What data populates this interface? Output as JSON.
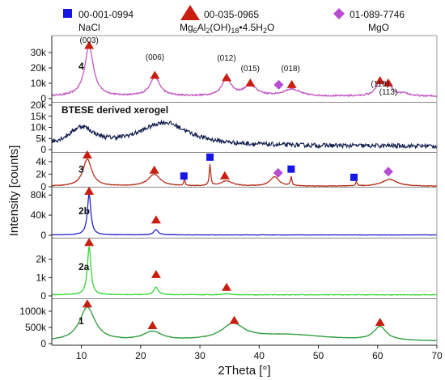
{
  "chart_data": {
    "type": "line",
    "xlabel": "2Theta [°]",
    "ylabel": "Intensity [counts]",
    "xlim": [
      5,
      70
    ],
    "xticks": [
      10,
      20,
      30,
      40,
      50,
      60,
      70
    ],
    "colors": {
      "nacl": "#1515e6",
      "ldh": "#c81e10",
      "mgo": "#b64dd2"
    },
    "legend": [
      {
        "code": "00-001-0994",
        "phase": "NaCl",
        "marker": "square"
      },
      {
        "code": "00-035-0965",
        "phase": "Mg6Al2(OH)18•4.5H2O",
        "marker": "triangle"
      },
      {
        "code": "01-089-7746",
        "phase": "MgO",
        "marker": "diamond"
      }
    ],
    "miller_indices": [
      {
        "label": "(003)",
        "x": 11.3
      },
      {
        "label": "(006)",
        "x": 22.4
      },
      {
        "label": "(012)",
        "x": 34.5
      },
      {
        "label": "(015)",
        "x": 38.5
      },
      {
        "label": "(018)",
        "x": 45.3
      },
      {
        "label": "(110)",
        "x": 60.4
      },
      {
        "label": "(113)",
        "x": 61.8
      }
    ],
    "panels": [
      {
        "label": "4",
        "color": "#c257c2",
        "ylim": [
          0,
          40000
        ],
        "ytick_labels": [
          "0",
          "10k",
          "20k",
          "30k"
        ],
        "ytick_values": [
          0,
          10000,
          20000,
          30000
        ],
        "base": 1500,
        "noise": 0.012,
        "peaks": [
          {
            "x": 11.3,
            "h": 32500,
            "w": 0.9
          },
          {
            "x": 22.4,
            "h": 12500,
            "w": 1.0
          },
          {
            "x": 34.5,
            "h": 11500,
            "w": 0.9
          },
          {
            "x": 38.5,
            "h": 6500,
            "w": 1.4
          },
          {
            "x": 45.5,
            "h": 4500,
            "w": 1.6
          },
          {
            "x": 60.4,
            "h": 8500,
            "w": 0.8
          },
          {
            "x": 61.8,
            "h": 6500,
            "w": 0.8
          },
          {
            "x": 64.5,
            "h": 1500,
            "w": 1.0
          }
        ],
        "markers": [
          {
            "type": "triangle",
            "x": 11.3,
            "y": 34500
          },
          {
            "type": "triangle",
            "x": 22.4,
            "y": 15000
          },
          {
            "type": "triangle",
            "x": 34.5,
            "y": 13500
          },
          {
            "type": "triangle",
            "x": 38.5,
            "y": 10000
          },
          {
            "type": "diamond",
            "x": 43.3,
            "y": 9000
          },
          {
            "type": "triangle",
            "x": 45.5,
            "y": 9000
          },
          {
            "type": "triangle",
            "x": 60.4,
            "y": 11500
          },
          {
            "type": "triangle",
            "x": 61.8,
            "y": 10000
          }
        ]
      },
      {
        "label": "BTESE derived xerogel",
        "color": "#0e1a4a",
        "ylim": [
          0,
          20000
        ],
        "ytick_labels": [
          "0",
          "5k",
          "10k",
          "15k",
          "20k"
        ],
        "ytick_values": [
          0,
          5000,
          10000,
          15000,
          20000
        ],
        "base": 1500,
        "noise": 0.05,
        "peaks": [
          {
            "x": 10,
            "h": 7800,
            "w": 2.5
          },
          {
            "x": 24,
            "h": 10500,
            "w": 5.0
          }
        ],
        "markers": []
      },
      {
        "label": "3",
        "color": "#b5301c",
        "ylim": [
          0,
          5000
        ],
        "ytick_labels": [
          "0",
          "2k",
          "4k"
        ],
        "ytick_values": [
          0,
          2000,
          4000
        ],
        "base": 80,
        "noise": 0.01,
        "peaks": [
          {
            "x": 11.0,
            "h": 4300,
            "w": 0.9
          },
          {
            "x": 22.3,
            "h": 1900,
            "w": 1.2
          },
          {
            "x": 27.4,
            "h": 900,
            "w": 0.15
          },
          {
            "x": 31.7,
            "h": 3300,
            "w": 0.15
          },
          {
            "x": 34.5,
            "h": 800,
            "w": 1.2
          },
          {
            "x": 42.6,
            "h": 1500,
            "w": 0.9
          },
          {
            "x": 45.4,
            "h": 1400,
            "w": 0.15
          },
          {
            "x": 56.4,
            "h": 700,
            "w": 0.15
          },
          {
            "x": 62.0,
            "h": 1100,
            "w": 1.5
          }
        ],
        "markers": [
          {
            "type": "triangle",
            "x": 11.0,
            "y": 5000
          },
          {
            "type": "triangle",
            "x": 22.3,
            "y": 2600
          },
          {
            "type": "square",
            "x": 27.3,
            "y": 1700
          },
          {
            "type": "square",
            "x": 31.7,
            "y": 4700
          },
          {
            "type": "triangle",
            "x": 34.2,
            "y": 1700
          },
          {
            "type": "diamond",
            "x": 43.2,
            "y": 2200
          },
          {
            "type": "square",
            "x": 45.4,
            "y": 2800
          },
          {
            "type": "square",
            "x": 56.0,
            "y": 1500
          },
          {
            "type": "diamond",
            "x": 61.8,
            "y": 2400
          }
        ]
      },
      {
        "label": "2b",
        "color": "#2323c8",
        "ylim": [
          0,
          90000
        ],
        "ytick_labels": [
          "0",
          "40k",
          "80k"
        ],
        "ytick_values": [
          0,
          40000,
          80000
        ],
        "base": 700,
        "noise": 0.004,
        "peaks": [
          {
            "x": 11.3,
            "h": 82000,
            "w": 0.35
          },
          {
            "x": 22.6,
            "h": 10500,
            "w": 0.45
          }
        ],
        "markers": [
          {
            "type": "triangle",
            "x": 11.3,
            "y": 87000
          },
          {
            "type": "triangle",
            "x": 22.6,
            "y": 30000
          }
        ]
      },
      {
        "label": "2a",
        "color": "#34d534",
        "ylim": [
          0,
          3000
        ],
        "ytick_labels": [
          "0",
          "1k",
          "2k"
        ],
        "ytick_values": [
          0,
          1000,
          2000
        ],
        "base": 60,
        "noise": 0.005,
        "peaks": [
          {
            "x": 11.3,
            "h": 2650,
            "w": 0.35
          },
          {
            "x": 22.6,
            "h": 420,
            "w": 0.45
          },
          {
            "x": 34.5,
            "h": 60,
            "w": 0.8
          }
        ],
        "markers": [
          {
            "type": "triangle",
            "x": 11.3,
            "y": 2900
          },
          {
            "type": "triangle",
            "x": 22.6,
            "y": 1150
          },
          {
            "type": "triangle",
            "x": 34.5,
            "y": 450
          }
        ]
      },
      {
        "label": "1",
        "color": "#2a9a3a",
        "ylim": [
          0,
          1300000
        ],
        "ytick_labels": [
          "0",
          "500k",
          "1000k"
        ],
        "ytick_values": [
          0,
          500000,
          1000000
        ],
        "base": 60000,
        "noise": 0.006,
        "peaks": [
          {
            "x": 11.0,
            "h": 1040000,
            "w": 1.6
          },
          {
            "x": 22.0,
            "h": 270000,
            "w": 1.9
          },
          {
            "x": 35.6,
            "h": 470000,
            "w": 2.3
          },
          {
            "x": 45,
            "h": 200000,
            "w": 9.0
          },
          {
            "x": 60.4,
            "h": 420000,
            "w": 1.3
          }
        ],
        "markers": [
          {
            "type": "triangle",
            "x": 11.0,
            "y": 1220000
          },
          {
            "type": "triangle",
            "x": 22.0,
            "y": 550000
          },
          {
            "type": "triangle",
            "x": 35.8,
            "y": 710000
          },
          {
            "type": "triangle",
            "x": 60.4,
            "y": 650000
          }
        ]
      }
    ]
  }
}
